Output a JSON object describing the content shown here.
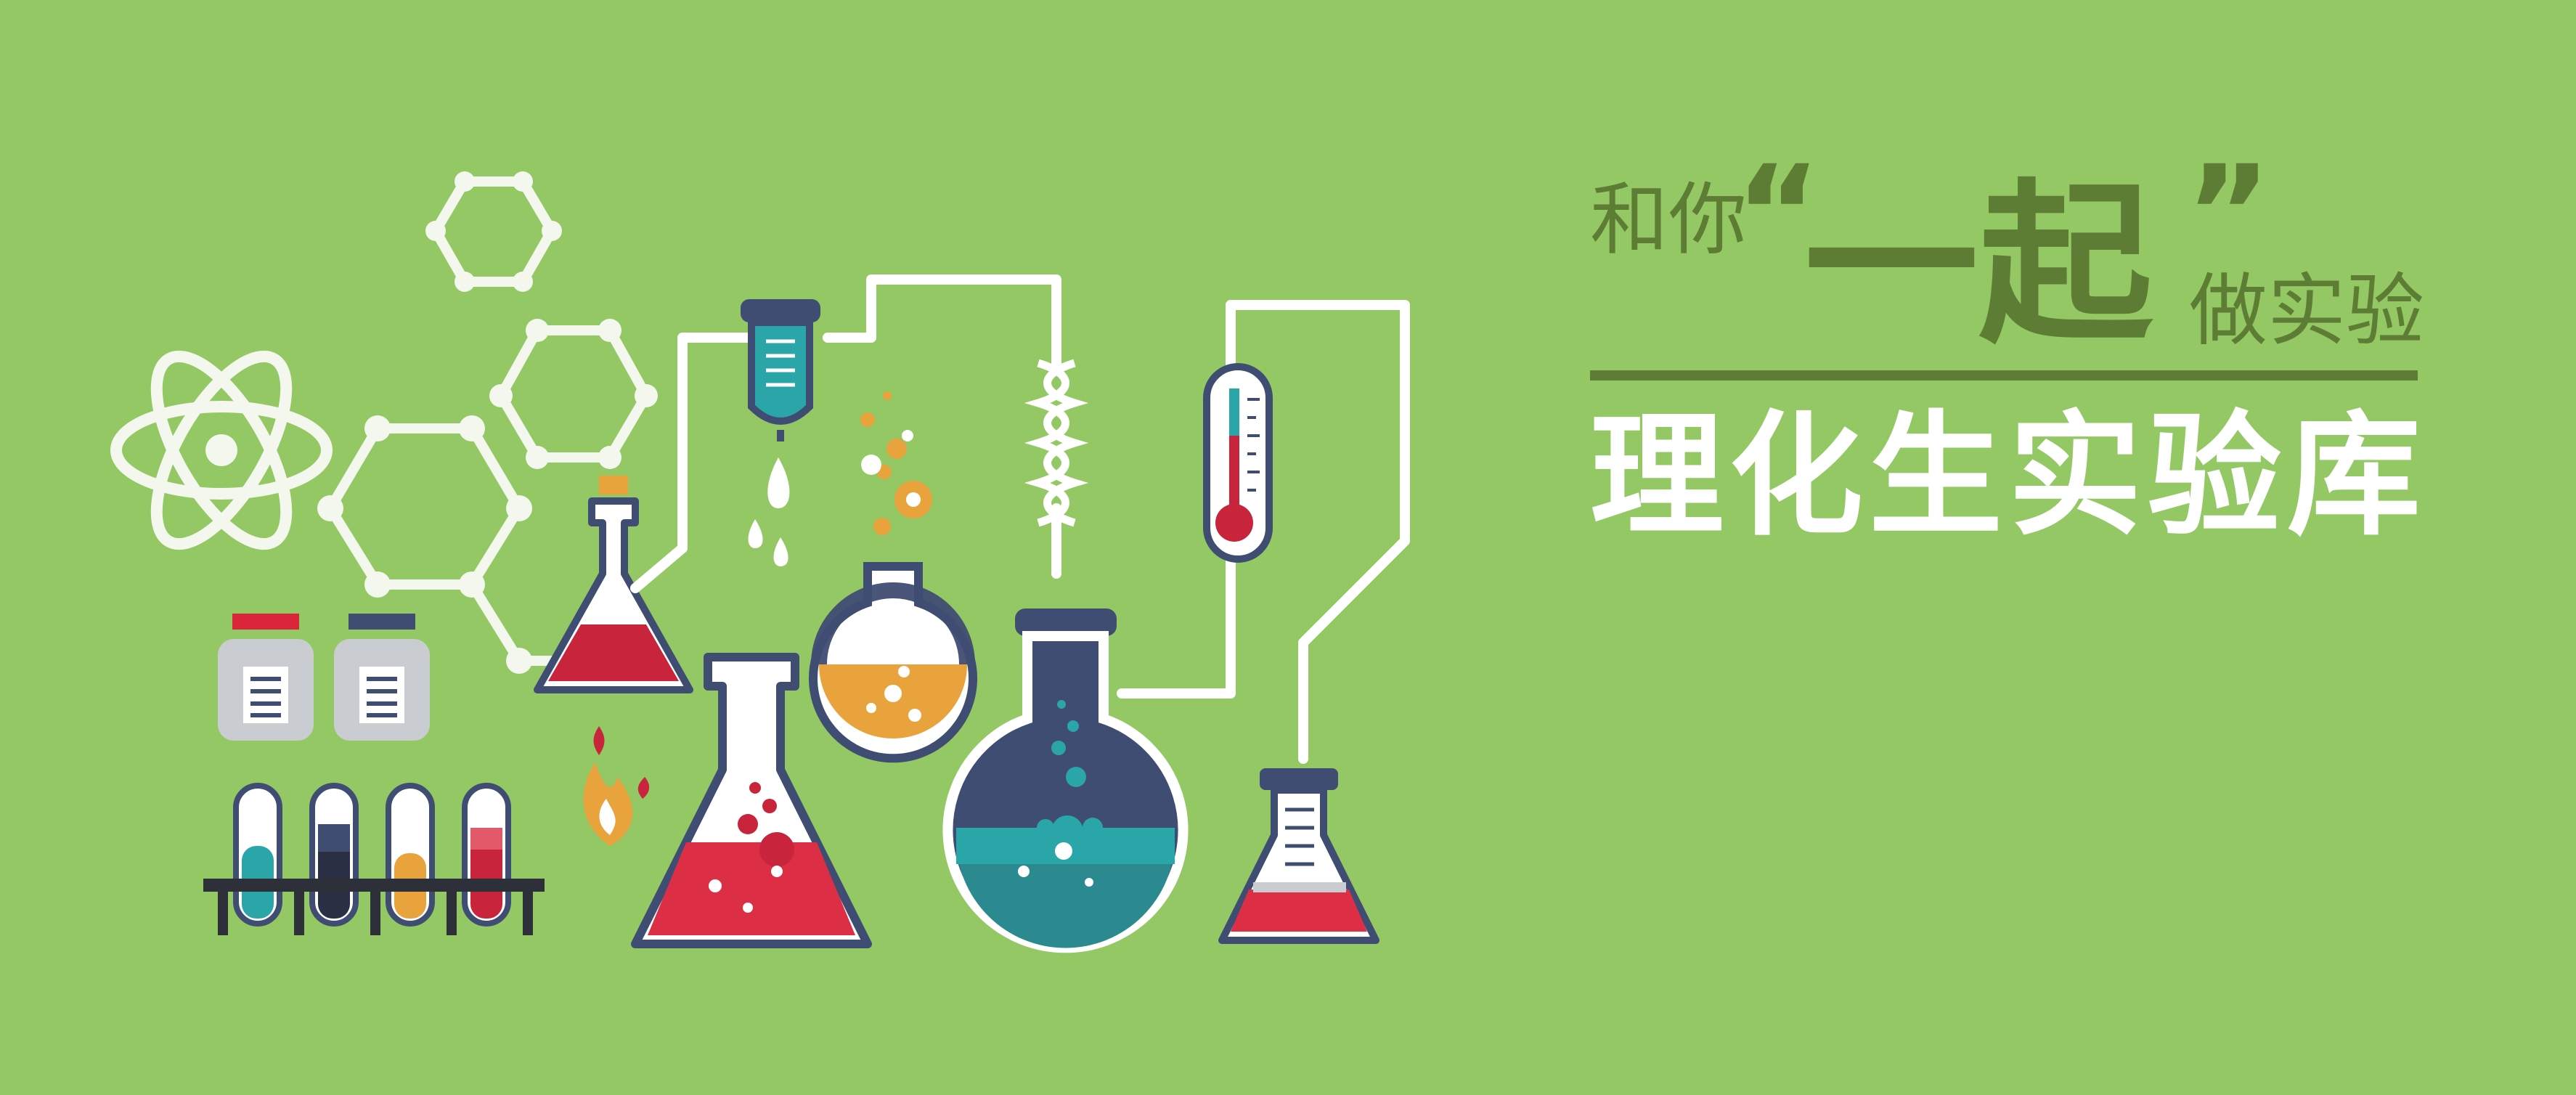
{
  "tagline": {
    "lead": "和你",
    "open_quote": "“",
    "emphasis": "一起",
    "close_quote": "”",
    "tail": "做实验"
  },
  "title": "理化生实验库",
  "colors": {
    "background": "#94c864",
    "tagline": "#5d7d34",
    "title": "#ffffff",
    "navy": "#3f4d73",
    "red": "#c8253c",
    "orange": "#e9a33c",
    "teal": "#2aa5a8"
  },
  "icons": [
    "atom-icon",
    "hexagon-molecule-icon",
    "reagent-bottle-icon",
    "test-tube-rack-icon",
    "flame-icon",
    "dropper-icon",
    "thermometer-icon",
    "erlenmeyer-flask-icon",
    "round-flask-icon",
    "coil-tube-icon"
  ]
}
